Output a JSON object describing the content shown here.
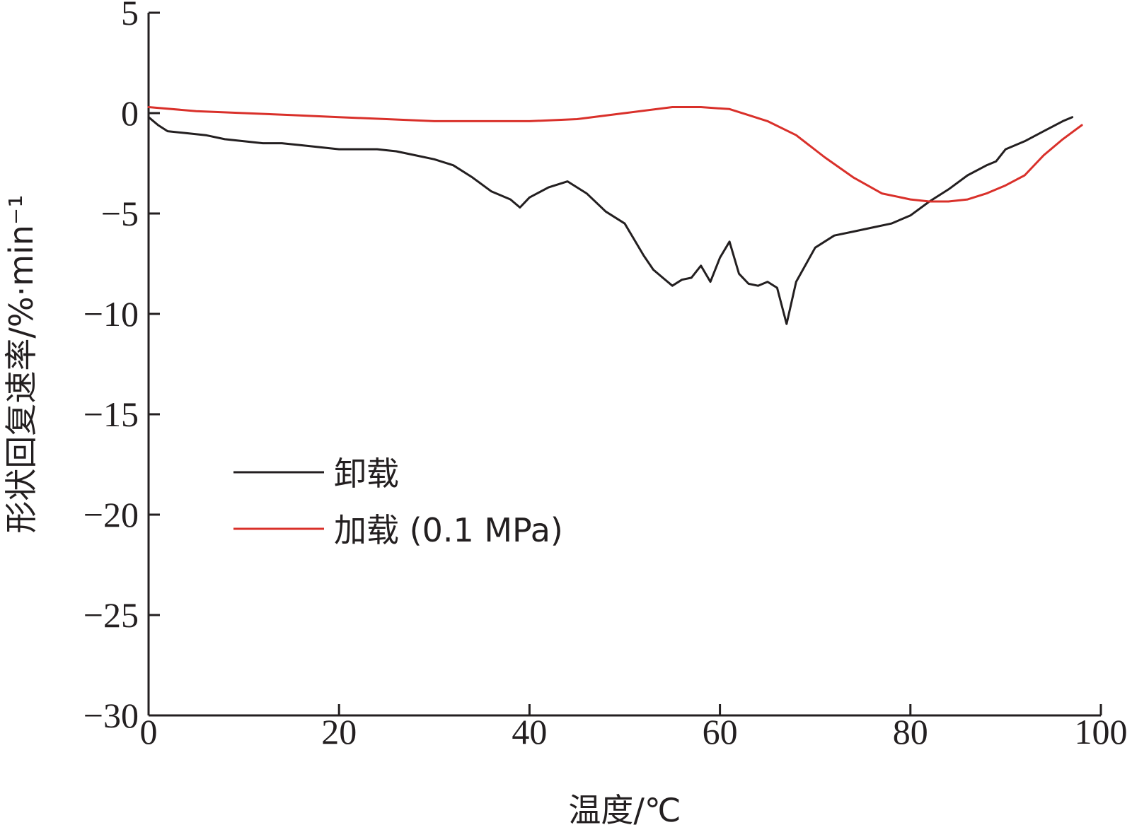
{
  "chart_data": {
    "type": "line",
    "xlabel": "温度/℃",
    "ylabel": "形状回复速率/%·min⁻¹",
    "xlim": [
      0,
      100
    ],
    "ylim": [
      -30,
      5
    ],
    "x_ticks": [
      "0",
      "20",
      "40",
      "60",
      "80",
      "100"
    ],
    "y_ticks": [
      "5",
      "0",
      "−5",
      "−10",
      "−15",
      "−20",
      "−25",
      "−30"
    ],
    "grid": false,
    "legend_position": "center-left",
    "series": [
      {
        "name": "卸载",
        "color": "#231f20",
        "x": [
          0,
          1,
          2,
          4,
          6,
          8,
          10,
          12,
          14,
          16,
          18,
          20,
          22,
          24,
          26,
          28,
          30,
          32,
          34,
          36,
          38,
          39,
          40,
          42,
          44,
          46,
          48,
          50,
          52,
          53,
          54,
          55,
          56,
          57,
          58,
          59,
          60,
          61,
          62,
          63,
          64,
          65,
          66,
          67,
          68,
          70,
          72,
          74,
          76,
          78,
          80,
          82,
          84,
          86,
          88,
          89,
          90,
          92,
          94,
          96,
          97
        ],
        "y": [
          -0.2,
          -0.6,
          -0.9,
          -1.0,
          -1.1,
          -1.3,
          -1.4,
          -1.5,
          -1.5,
          -1.6,
          -1.7,
          -1.8,
          -1.8,
          -1.8,
          -1.9,
          -2.1,
          -2.3,
          -2.6,
          -3.2,
          -3.9,
          -4.3,
          -4.7,
          -4.2,
          -3.7,
          -3.4,
          -4.0,
          -4.9,
          -5.5,
          -7.1,
          -7.8,
          -8.2,
          -8.6,
          -8.3,
          -8.2,
          -7.6,
          -8.4,
          -7.2,
          -6.4,
          -8.0,
          -8.5,
          -8.6,
          -8.4,
          -8.7,
          -10.5,
          -8.4,
          -6.7,
          -6.1,
          -5.9,
          -5.7,
          -5.5,
          -5.1,
          -4.4,
          -3.8,
          -3.1,
          -2.6,
          -2.4,
          -1.8,
          -1.4,
          -0.9,
          -0.4,
          -0.2
        ]
      },
      {
        "name": "加载 (0.1 MPa)",
        "color": "#d9302a",
        "x": [
          0,
          5,
          10,
          15,
          20,
          25,
          30,
          35,
          38,
          40,
          45,
          50,
          55,
          58,
          61,
          63,
          65,
          68,
          71,
          74,
          77,
          80,
          82,
          84,
          86,
          88,
          90,
          92,
          94,
          96,
          98
        ],
        "y": [
          0.3,
          0.1,
          0.0,
          -0.1,
          -0.2,
          -0.3,
          -0.4,
          -0.4,
          -0.4,
          -0.4,
          -0.3,
          0.0,
          0.3,
          0.3,
          0.2,
          -0.1,
          -0.4,
          -1.1,
          -2.2,
          -3.2,
          -4.0,
          -4.3,
          -4.4,
          -4.4,
          -4.3,
          -4.0,
          -3.6,
          -3.1,
          -2.1,
          -1.3,
          -0.6
        ]
      }
    ]
  }
}
